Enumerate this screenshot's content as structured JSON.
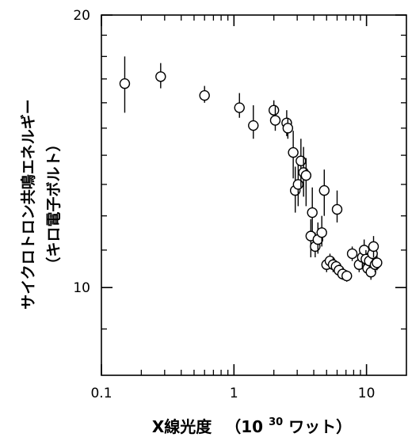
{
  "chart_data": {
    "type": "scatter",
    "xlabel": "X線光度",
    "xlabel_unit_prefix": "（10",
    "xlabel_unit_exponent": "30",
    "xlabel_unit_suffix": " ワット）",
    "ylabel_line1": "サイクロトロン共鳴エネルギー",
    "ylabel_line2": "（キロ電子ボルト）",
    "x_scale": "log",
    "y_scale": "log",
    "xlim": [
      0.1,
      20
    ],
    "ylim": [
      8,
      20
    ],
    "x_ticks": [
      {
        "value": 0.1,
        "label": "0.1"
      },
      {
        "value": 1,
        "label": "1"
      },
      {
        "value": 10,
        "label": "10"
      }
    ],
    "y_ticks": [
      {
        "value": 10,
        "label": "10"
      },
      {
        "value": 20,
        "label": "20"
      }
    ],
    "grid": false,
    "legend": "none",
    "marker": "open-circle",
    "points": [
      {
        "x": 0.15,
        "y": 16.8,
        "ylo": 15.6,
        "yhi": 18.0
      },
      {
        "x": 0.28,
        "y": 17.1,
        "ylo": 16.6,
        "yhi": 17.7
      },
      {
        "x": 0.6,
        "y": 16.3,
        "ylo": 16.0,
        "yhi": 16.7
      },
      {
        "x": 1.1,
        "y": 15.8,
        "ylo": 15.4,
        "yhi": 16.4
      },
      {
        "x": 1.4,
        "y": 15.1,
        "ylo": 14.6,
        "yhi": 15.9
      },
      {
        "x": 2.0,
        "y": 15.7,
        "ylo": 15.4,
        "yhi": 16.1
      },
      {
        "x": 2.05,
        "y": 15.3,
        "ylo": 14.9,
        "yhi": 15.9
      },
      {
        "x": 2.5,
        "y": 15.2,
        "ylo": 14.7,
        "yhi": 15.7
      },
      {
        "x": 2.55,
        "y": 15.0,
        "ylo": 14.6,
        "yhi": 15.4
      },
      {
        "x": 2.8,
        "y": 14.1,
        "ylo": 13.2,
        "yhi": 14.9
      },
      {
        "x": 2.9,
        "y": 12.8,
        "ylo": 12.1,
        "yhi": 13.6
      },
      {
        "x": 3.05,
        "y": 13.0,
        "ylo": 12.3,
        "yhi": 13.8
      },
      {
        "x": 3.2,
        "y": 13.8,
        "ylo": 12.9,
        "yhi": 14.6
      },
      {
        "x": 3.35,
        "y": 13.4,
        "ylo": 12.6,
        "yhi": 14.3
      },
      {
        "x": 3.5,
        "y": 13.3,
        "ylo": 12.3,
        "yhi": 13.9
      },
      {
        "x": 3.9,
        "y": 12.1,
        "ylo": 11.4,
        "yhi": 12.9
      },
      {
        "x": 3.8,
        "y": 11.4,
        "ylo": 10.8,
        "yhi": 11.9
      },
      {
        "x": 4.1,
        "y": 11.1,
        "ylo": 10.8,
        "yhi": 11.5
      },
      {
        "x": 4.3,
        "y": 11.3,
        "ylo": 10.9,
        "yhi": 11.8
      },
      {
        "x": 4.6,
        "y": 11.5,
        "ylo": 11.1,
        "yhi": 12.0
      },
      {
        "x": 4.8,
        "y": 12.8,
        "ylo": 12.0,
        "yhi": 13.5
      },
      {
        "x": 5.0,
        "y": 10.6,
        "ylo": 10.4,
        "yhi": 10.8
      },
      {
        "x": 5.3,
        "y": 10.7,
        "ylo": 10.5,
        "yhi": 10.9
      },
      {
        "x": 5.6,
        "y": 10.6,
        "ylo": 10.4,
        "yhi": 10.8
      },
      {
        "x": 5.9,
        "y": 10.55,
        "ylo": 10.4,
        "yhi": 10.7
      },
      {
        "x": 6.2,
        "y": 10.45,
        "ylo": 10.3,
        "yhi": 10.6
      },
      {
        "x": 6.6,
        "y": 10.35,
        "ylo": 10.2,
        "yhi": 10.5
      },
      {
        "x": 7.1,
        "y": 10.3,
        "ylo": 10.15,
        "yhi": 10.45
      },
      {
        "x": 6.0,
        "y": 12.2,
        "ylo": 11.8,
        "yhi": 12.8
      },
      {
        "x": 7.8,
        "y": 10.9,
        "ylo": 10.7,
        "yhi": 11.1
      },
      {
        "x": 8.8,
        "y": 10.6,
        "ylo": 10.4,
        "yhi": 10.8
      },
      {
        "x": 9.3,
        "y": 10.8,
        "ylo": 10.5,
        "yhi": 11.1
      },
      {
        "x": 9.6,
        "y": 11.0,
        "ylo": 10.7,
        "yhi": 11.3
      },
      {
        "x": 9.9,
        "y": 10.75,
        "ylo": 10.5,
        "yhi": 11.0
      },
      {
        "x": 10.2,
        "y": 10.5,
        "ylo": 10.3,
        "yhi": 10.7
      },
      {
        "x": 10.5,
        "y": 10.7,
        "ylo": 10.4,
        "yhi": 11.0
      },
      {
        "x": 10.8,
        "y": 10.4,
        "ylo": 10.2,
        "yhi": 10.6
      },
      {
        "x": 11.1,
        "y": 10.9,
        "ylo": 10.6,
        "yhi": 11.2
      },
      {
        "x": 11.3,
        "y": 11.1,
        "ylo": 10.8,
        "yhi": 11.4
      },
      {
        "x": 11.6,
        "y": 10.6,
        "ylo": 10.4,
        "yhi": 10.8
      },
      {
        "x": 12.0,
        "y": 10.65,
        "ylo": 10.45,
        "yhi": 10.85
      }
    ]
  }
}
